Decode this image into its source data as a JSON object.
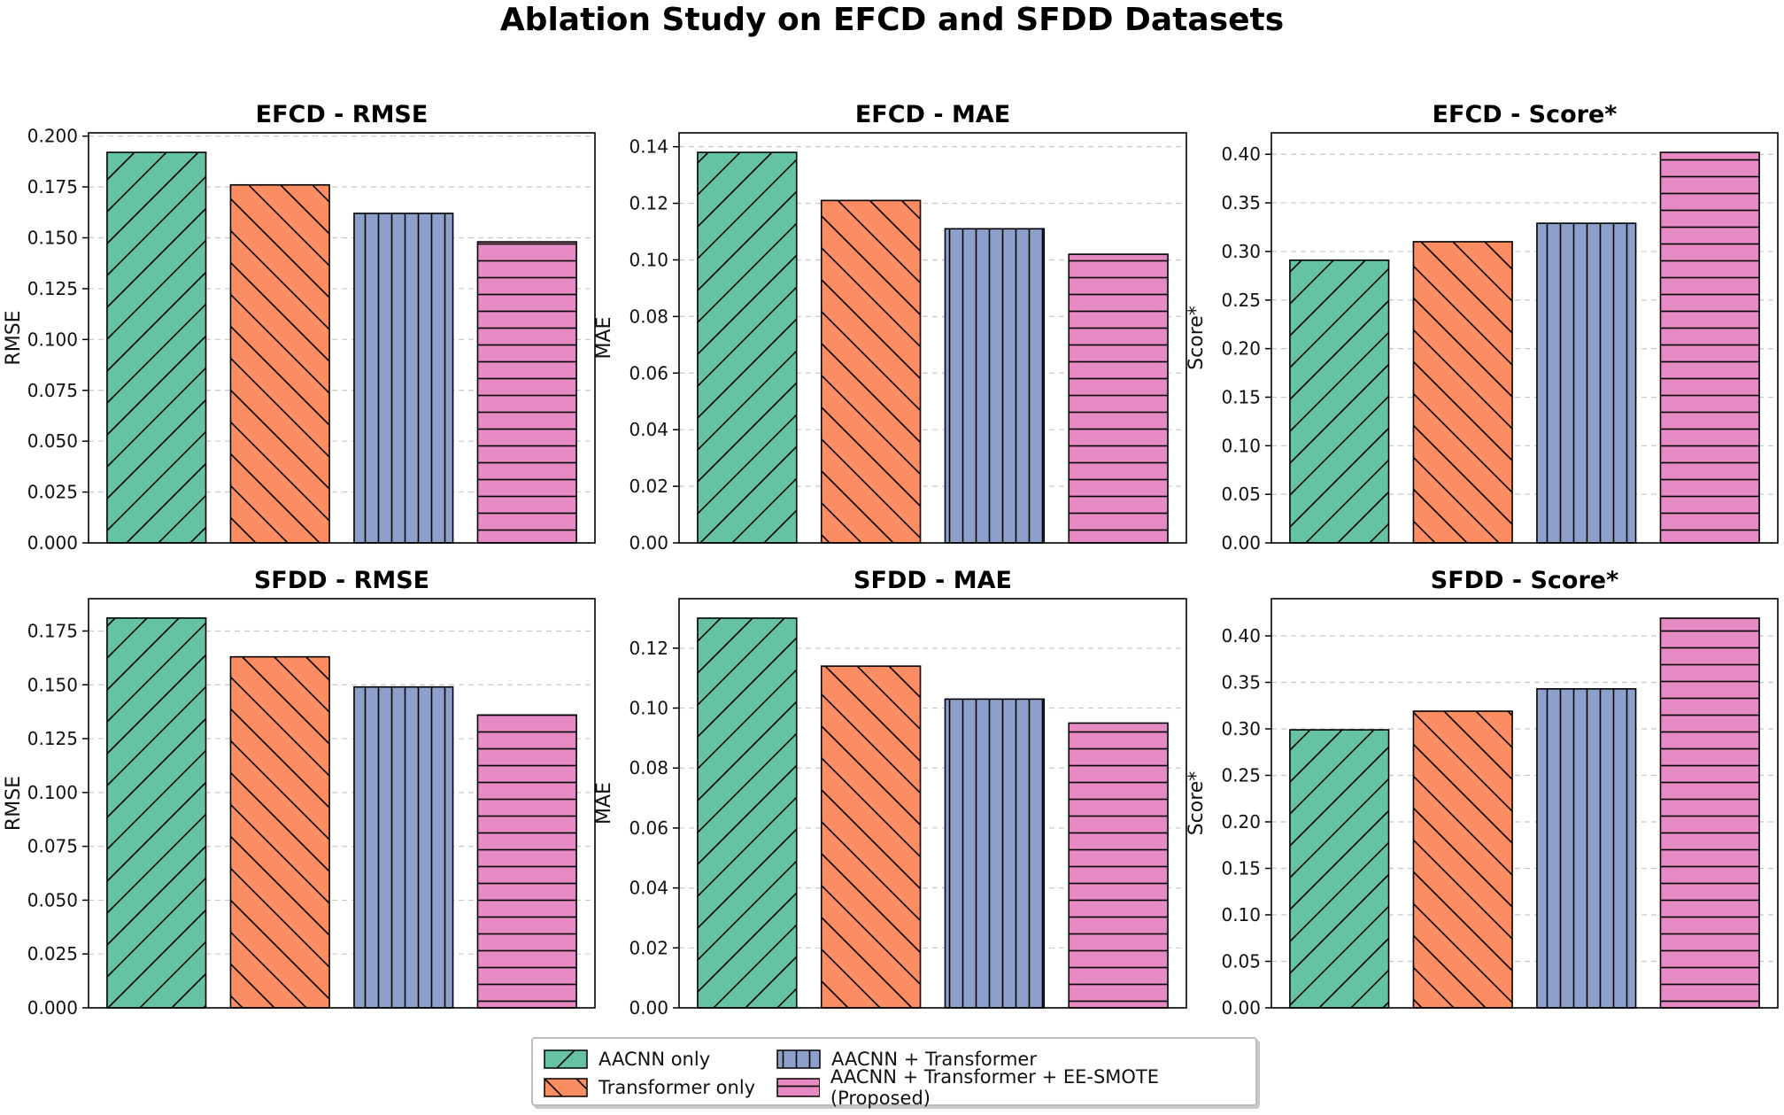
{
  "title": "Ablation Study on EFCD and SFDD Datasets",
  "colors": [
    "#66c2a5",
    "#fc8d62",
    "#8da0cb",
    "#e78ac3"
  ],
  "chart_data": [
    {
      "type": "bar",
      "title": "EFCD - RMSE",
      "ylabel": "RMSE",
      "categories": [
        "AACNN only",
        "Transformer only",
        "AACNN + Transformer",
        "AACNN + Transformer + EE-SMOTE (Proposed)"
      ],
      "values": [
        0.192,
        0.176,
        0.162,
        0.148
      ],
      "ylim": [
        0,
        0.2016
      ],
      "ticks": [
        0.0,
        0.025,
        0.05,
        0.075,
        0.1,
        0.125,
        0.15,
        0.175,
        0.2
      ],
      "tick_labels": [
        "0.000",
        "0.025",
        "0.050",
        "0.075",
        "0.100",
        "0.125",
        "0.150",
        "0.175",
        "0.200"
      ]
    },
    {
      "type": "bar",
      "title": "EFCD - MAE",
      "ylabel": "MAE",
      "categories": [
        "AACNN only",
        "Transformer only",
        "AACNN + Transformer",
        "AACNN + Transformer + EE-SMOTE (Proposed)"
      ],
      "values": [
        0.138,
        0.121,
        0.111,
        0.102
      ],
      "ylim": [
        0,
        0.1449
      ],
      "ticks": [
        0.0,
        0.02,
        0.04,
        0.06,
        0.08,
        0.1,
        0.12,
        0.14
      ],
      "tick_labels": [
        "0.00",
        "0.02",
        "0.04",
        "0.06",
        "0.08",
        "0.10",
        "0.12",
        "0.14"
      ]
    },
    {
      "type": "bar",
      "title": "EFCD - Score*",
      "ylabel": "Score*",
      "categories": [
        "AACNN only",
        "Transformer only",
        "AACNN + Transformer",
        "AACNN + Transformer + EE-SMOTE (Proposed)"
      ],
      "values": [
        0.291,
        0.31,
        0.329,
        0.402
      ],
      "ylim": [
        0,
        0.4221
      ],
      "ticks": [
        0.0,
        0.05,
        0.1,
        0.15,
        0.2,
        0.25,
        0.3,
        0.35,
        0.4
      ],
      "tick_labels": [
        "0.00",
        "0.05",
        "0.10",
        "0.15",
        "0.20",
        "0.25",
        "0.30",
        "0.35",
        "0.40"
      ]
    },
    {
      "type": "bar",
      "title": "SFDD - RMSE",
      "ylabel": "RMSE",
      "categories": [
        "AACNN only",
        "Transformer only",
        "AACNN + Transformer",
        "AACNN + Transformer + EE-SMOTE (Proposed)"
      ],
      "values": [
        0.181,
        0.163,
        0.149,
        0.136
      ],
      "ylim": [
        0,
        0.19
      ],
      "ticks": [
        0.0,
        0.025,
        0.05,
        0.075,
        0.1,
        0.125,
        0.15,
        0.175
      ],
      "tick_labels": [
        "0.000",
        "0.025",
        "0.050",
        "0.075",
        "0.100",
        "0.125",
        "0.150",
        "0.175"
      ]
    },
    {
      "type": "bar",
      "title": "SFDD - MAE",
      "ylabel": "MAE",
      "categories": [
        "AACNN only",
        "Transformer only",
        "AACNN + Transformer",
        "AACNN + Transformer + EE-SMOTE (Proposed)"
      ],
      "values": [
        0.13,
        0.114,
        0.103,
        0.095
      ],
      "ylim": [
        0,
        0.1365
      ],
      "ticks": [
        0.0,
        0.02,
        0.04,
        0.06,
        0.08,
        0.1,
        0.12
      ],
      "tick_labels": [
        "0.00",
        "0.02",
        "0.04",
        "0.06",
        "0.08",
        "0.10",
        "0.12"
      ]
    },
    {
      "type": "bar",
      "title": "SFDD - Score*",
      "ylabel": "Score*",
      "categories": [
        "AACNN only",
        "Transformer only",
        "AACNN + Transformer",
        "AACNN + Transformer + EE-SMOTE (Proposed)"
      ],
      "values": [
        0.299,
        0.319,
        0.343,
        0.419
      ],
      "ylim": [
        0,
        0.44
      ],
      "ticks": [
        0.0,
        0.05,
        0.1,
        0.15,
        0.2,
        0.25,
        0.3,
        0.35,
        0.4
      ],
      "tick_labels": [
        "0.00",
        "0.05",
        "0.10",
        "0.15",
        "0.20",
        "0.25",
        "0.30",
        "0.35",
        "0.40"
      ]
    }
  ],
  "legend": [
    {
      "label": "AACNN only",
      "hatch": "diag-up"
    },
    {
      "label": "Transformer only",
      "hatch": "diag-down"
    },
    {
      "label": "AACNN + Transformer",
      "hatch": "vertical"
    },
    {
      "label": "AACNN + Transformer + EE-SMOTE (Proposed)",
      "hatch": "horizontal"
    }
  ]
}
